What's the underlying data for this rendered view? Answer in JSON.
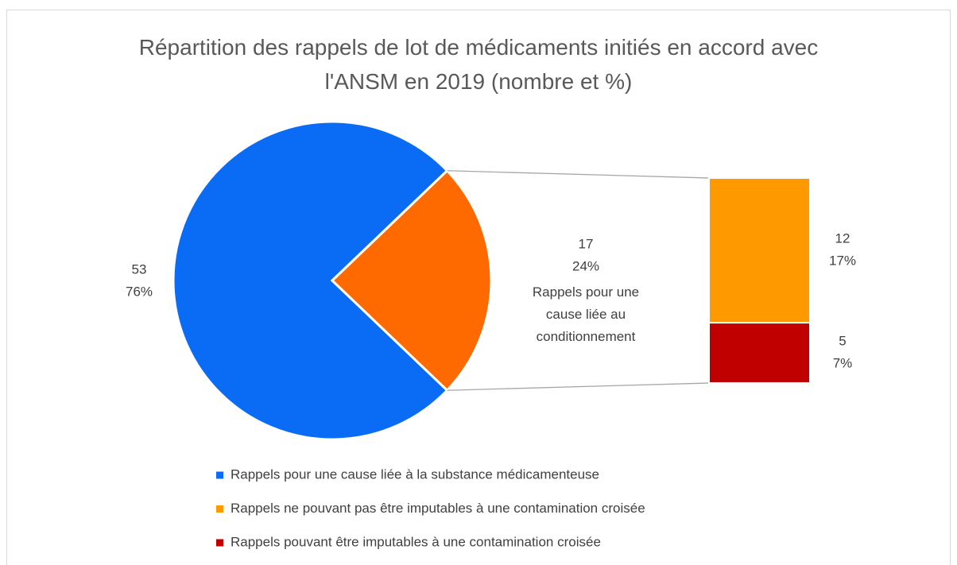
{
  "chart_data": {
    "type": "pie",
    "title": "Répartition des rappels de lot de médicaments initiés en accord avec l'ANSM en 2019 (nombre et %)",
    "categories": [
      "Rappels pour une cause liée à la substance médicamenteuse",
      "Rappels pour une cause liée au conditionnement"
    ],
    "values": [
      53,
      17
    ],
    "percent_labels": [
      "76%",
      "24%"
    ],
    "colors": [
      "#0a6cf5",
      "#ff6a00"
    ],
    "breakdown": {
      "categories": [
        "Rappels ne pouvant pas être imputables à une contamination croisée",
        "Rappels pouvant être imputables à une contamination croisée"
      ],
      "values": [
        12,
        5
      ],
      "percent_labels": [
        "17%",
        "7%"
      ],
      "colors": [
        "#ff9900",
        "#c00000"
      ]
    },
    "legend": "bottom"
  }
}
